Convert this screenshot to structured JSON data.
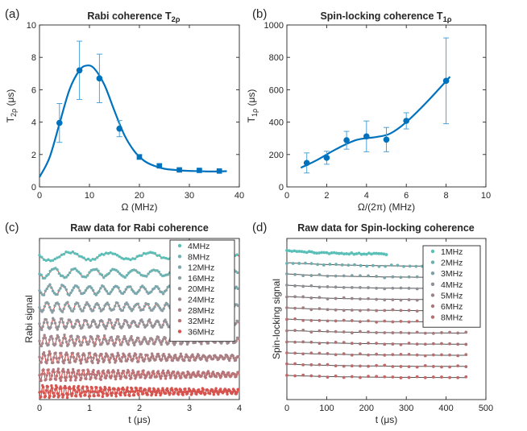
{
  "colors": {
    "blue": "#0072BD",
    "errorbar": "#4DA3D9",
    "raw_red": "#E0433D",
    "fit_line": "#555555"
  },
  "chart_data": [
    {
      "id": "a",
      "type": "scatter",
      "panel_label": "(a)",
      "title": "Rabi coherence T",
      "title_sub": "2ρ",
      "xlabel": "Ω (MHz)",
      "ylabel": "T",
      "ylabel_sub": "2ρ",
      "ylabel_unit": " (μs)",
      "xlim": [
        0,
        40
      ],
      "ylim": [
        0,
        10
      ],
      "xticks": [
        0,
        10,
        20,
        30,
        40
      ],
      "yticks": [
        0,
        2,
        4,
        6,
        8,
        10
      ],
      "xtick_labels": [
        "0",
        "10",
        "20",
        "30",
        "40"
      ],
      "ytick_labels": [
        "0",
        "2",
        "4",
        "6",
        "8",
        "10"
      ],
      "points": [
        {
          "x": 4,
          "y": 3.95,
          "err": 1.2
        },
        {
          "x": 8,
          "y": 7.2,
          "err": 1.8
        },
        {
          "x": 12,
          "y": 6.7,
          "err": 1.5
        },
        {
          "x": 16,
          "y": 3.6,
          "err": 0.5
        },
        {
          "x": 20,
          "y": 1.85,
          "err": 0.15
        },
        {
          "x": 24,
          "y": 1.3,
          "err": 0.1
        },
        {
          "x": 28,
          "y": 1.05,
          "err": 0.05
        },
        {
          "x": 32,
          "y": 1.02,
          "err": 0.05
        },
        {
          "x": 36,
          "y": 0.98,
          "err": 0.05
        }
      ],
      "fit": {
        "x": [
          0,
          2,
          4,
          6,
          8,
          9.5,
          11,
          13,
          15,
          17,
          19,
          21,
          23,
          25,
          27,
          29,
          31,
          33,
          35,
          37.5
        ],
        "y": [
          0.6,
          1.8,
          3.9,
          6.0,
          7.2,
          7.5,
          7.3,
          6.3,
          4.7,
          3.2,
          2.2,
          1.6,
          1.3,
          1.12,
          1.05,
          1.0,
          0.98,
          0.96,
          0.95,
          0.97
        ]
      }
    },
    {
      "id": "b",
      "type": "scatter",
      "panel_label": "(b)",
      "title": "Spin-locking coherence T",
      "title_sub": "1ρ",
      "xlabel": "Ω/(2π) (MHz)",
      "ylabel": "T",
      "ylabel_sub": "1ρ",
      "ylabel_unit": " (μs)",
      "xlim": [
        0,
        10
      ],
      "ylim": [
        0,
        1000
      ],
      "xticks": [
        0,
        2,
        4,
        6,
        8,
        10
      ],
      "yticks": [
        0,
        200,
        400,
        600,
        800,
        1000
      ],
      "xtick_labels": [
        "0",
        "2",
        "4",
        "6",
        "8",
        "10"
      ],
      "ytick_labels": [
        "0",
        "200",
        "400",
        "600",
        "800",
        "1000"
      ],
      "points": [
        {
          "x": 1,
          "y": 148,
          "err": 62
        },
        {
          "x": 2,
          "y": 180,
          "err": 40
        },
        {
          "x": 3,
          "y": 288,
          "err": 55
        },
        {
          "x": 4,
          "y": 312,
          "err": 95
        },
        {
          "x": 5,
          "y": 292,
          "err": 75
        },
        {
          "x": 6,
          "y": 408,
          "err": 50
        },
        {
          "x": 8,
          "y": 655,
          "err": 265
        }
      ],
      "fit": {
        "x": [
          0.7,
          1.5,
          2.5,
          3.5,
          4.5,
          5.2,
          6,
          7,
          8.2
        ],
        "y": [
          118,
          165,
          235,
          290,
          308,
          330,
          400,
          520,
          680
        ]
      }
    },
    {
      "id": "c",
      "type": "line",
      "panel_label": "(c)",
      "title": "Raw data for Rabi coherence",
      "xlabel": "t (μs)",
      "ylabel": "Rabi signal",
      "xlim": [
        0,
        4
      ],
      "xticks": [
        0,
        1,
        2,
        3,
        4
      ],
      "xtick_labels": [
        "0",
        "1",
        "2",
        "3",
        "4"
      ],
      "legend_location": "upper-right",
      "series": [
        {
          "name": "4MHz",
          "freq_mhz": 4
        },
        {
          "name": "8MHz",
          "freq_mhz": 8
        },
        {
          "name": "12MHz",
          "freq_mhz": 12
        },
        {
          "name": "16MHz",
          "freq_mhz": 16
        },
        {
          "name": "20MHz",
          "freq_mhz": 20
        },
        {
          "name": "24MHz",
          "freq_mhz": 24
        },
        {
          "name": "28MHz",
          "freq_mhz": 28
        },
        {
          "name": "32MHz",
          "freq_mhz": 32
        },
        {
          "name": "36MHz",
          "freq_mhz": 36
        }
      ],
      "legend_colors": [
        "#5ABFB7",
        "#6DB3B2",
        "#7BA7AC",
        "#8A9EA4",
        "#95939A",
        "#9F8A90",
        "#AA7F84",
        "#B87478",
        "#D6544F"
      ]
    },
    {
      "id": "d",
      "type": "line",
      "panel_label": "(d)",
      "title": "Raw data for Spin-locking coherence",
      "xlabel": "t (μs)",
      "ylabel": "Spin-locking signal",
      "xlim": [
        0,
        500
      ],
      "xticks": [
        0,
        100,
        200,
        300,
        400,
        500
      ],
      "xtick_labels": [
        "0",
        "100",
        "200",
        "300",
        "400",
        "500"
      ],
      "legend_location": "upper-right",
      "series": [
        {
          "name": "1MHz",
          "tmax": 250
        },
        {
          "name": "2MHz",
          "tmax": 340
        },
        {
          "name": "3MHz",
          "tmax": 450
        },
        {
          "name": "4MHz",
          "tmax": 450
        },
        {
          "name": "5MHz",
          "tmax": 450
        },
        {
          "name": "6MHz",
          "tmax": 450
        },
        {
          "name": "8MHz",
          "tmax": 450
        }
      ],
      "legend_colors": [
        "#5ABFB7",
        "#6BAFAE",
        "#7B9FA3",
        "#8C9097",
        "#9A848A",
        "#A97A7D",
        "#B86F70"
      ]
    }
  ]
}
